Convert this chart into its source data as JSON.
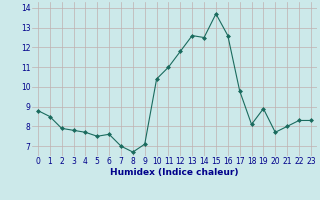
{
  "x": [
    0,
    1,
    2,
    3,
    4,
    5,
    6,
    7,
    8,
    9,
    10,
    11,
    12,
    13,
    14,
    15,
    16,
    17,
    18,
    19,
    20,
    21,
    22,
    23
  ],
  "y": [
    8.8,
    8.5,
    7.9,
    7.8,
    7.7,
    7.5,
    7.6,
    7.0,
    6.7,
    7.1,
    10.4,
    11.0,
    11.8,
    12.6,
    12.5,
    13.7,
    12.6,
    9.8,
    8.1,
    8.9,
    7.7,
    8.0,
    8.3,
    8.3
  ],
  "line_color": "#1a6b5e",
  "marker": "D",
  "marker_size": 2.0,
  "bg_color": "#cce9ea",
  "grid_color": "#c0b0b0",
  "xlabel": "Humidex (Indice chaleur)",
  "ylim": [
    6.5,
    14.3
  ],
  "xlim": [
    -0.5,
    23.5
  ],
  "yticks": [
    7,
    8,
    9,
    10,
    11,
    12,
    13,
    14
  ],
  "xticks": [
    0,
    1,
    2,
    3,
    4,
    5,
    6,
    7,
    8,
    9,
    10,
    11,
    12,
    13,
    14,
    15,
    16,
    17,
    18,
    19,
    20,
    21,
    22,
    23
  ],
  "font_color": "#00008b",
  "tick_fontsize": 5.5,
  "xlabel_fontsize": 6.5
}
